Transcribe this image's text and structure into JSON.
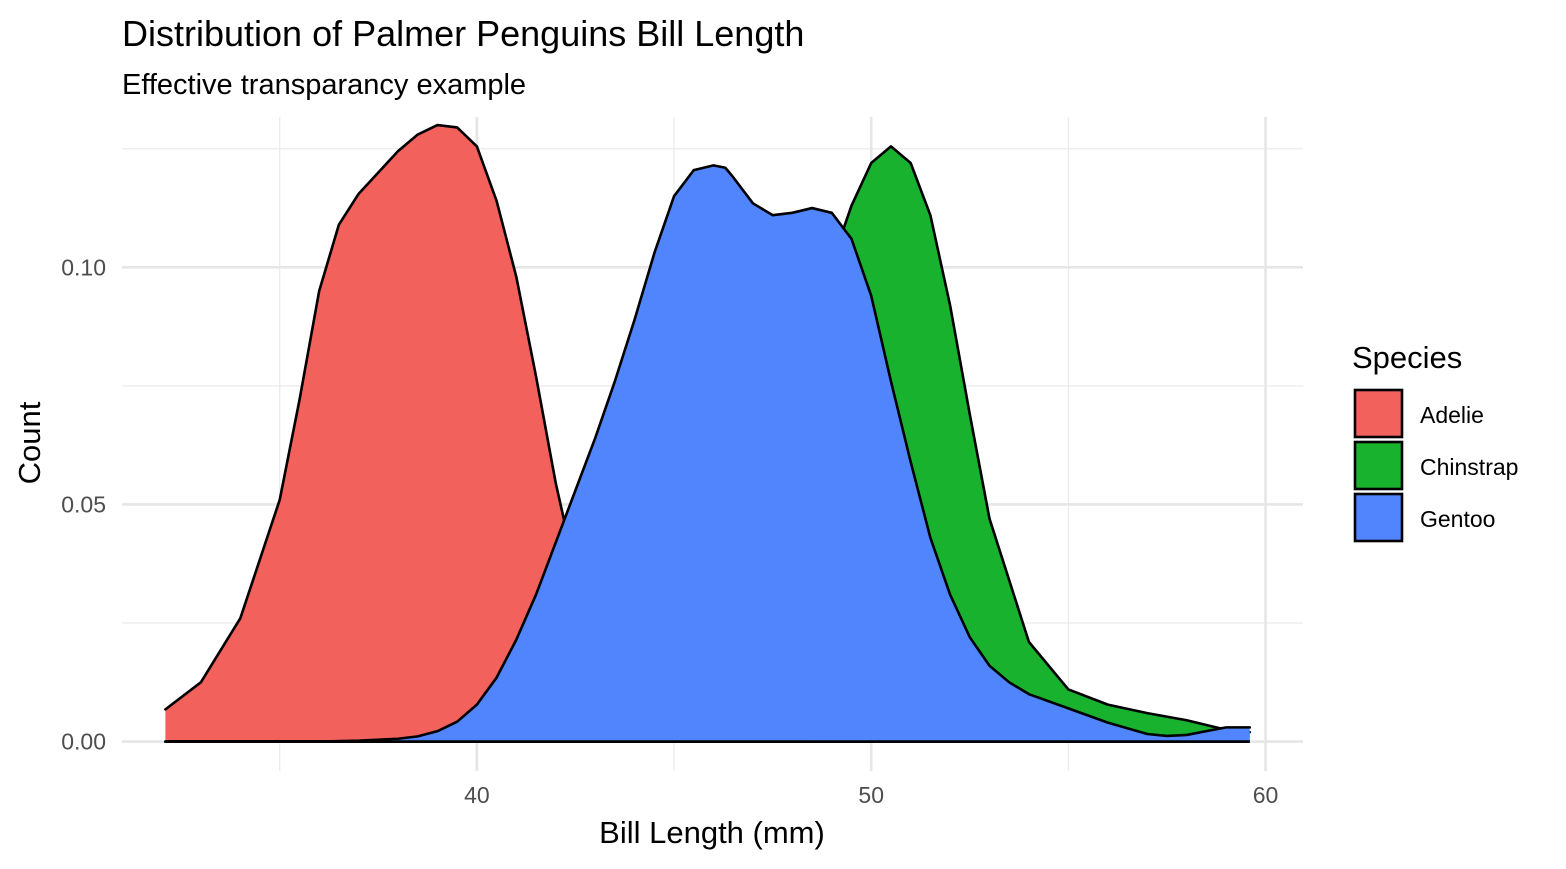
{
  "chart_data": {
    "type": "area",
    "title": "Distribution of Palmer Penguins Bill Length",
    "subtitle": "Effective transparancy example",
    "xlabel": "Bill Length (mm)",
    "ylabel": "Count",
    "xlim": [
      31.0,
      60.95
    ],
    "ylim": [
      -0.0062,
      0.1317
    ],
    "x_ticks": [
      40,
      50,
      60
    ],
    "x_tick_labels": [
      "40",
      "50",
      "60"
    ],
    "x_minor": [
      35,
      45,
      55
    ],
    "y_ticks": [
      0.0,
      0.05,
      0.1
    ],
    "y_tick_labels": [
      "0.00",
      "0.05",
      "0.10"
    ],
    "y_minor": [
      0.025,
      0.075,
      0.125
    ],
    "grid": true,
    "legend": {
      "title": "Species",
      "position": "right"
    },
    "series": [
      {
        "name": "Adelie",
        "color": "#F2615C",
        "x": [
          32.1,
          33.0,
          34.0,
          35.0,
          35.5,
          36.0,
          36.5,
          37.0,
          37.5,
          38.0,
          38.5,
          39.0,
          39.5,
          40.0,
          40.5,
          41.0,
          41.5,
          42.0,
          42.5,
          43.0,
          43.5,
          44.0,
          44.5,
          45.0,
          45.5,
          46.0,
          47.0,
          48.0,
          49.0,
          50.0
        ],
        "values": [
          0.0068,
          0.0125,
          0.026,
          0.051,
          0.072,
          0.095,
          0.109,
          0.1155,
          0.12,
          0.1245,
          0.128,
          0.13,
          0.1295,
          0.1255,
          0.114,
          0.098,
          0.077,
          0.0545,
          0.036,
          0.0225,
          0.014,
          0.0085,
          0.005,
          0.0029,
          0.0016,
          0.0009,
          0.0003,
          0.0001,
          0.0,
          0.0
        ]
      },
      {
        "name": "Chinstrap",
        "color": "#19B22F",
        "x": [
          32.1,
          36.0,
          38.0,
          39.0,
          40.0,
          40.5,
          41.0,
          42.0,
          43.0,
          44.0,
          45.0,
          46.0,
          47.0,
          48.0,
          48.5,
          49.0,
          49.5,
          50.0,
          50.5,
          51.0,
          51.5,
          52.0,
          52.5,
          53.0,
          54.0,
          55.0,
          56.0,
          57.0,
          58.0,
          59.0,
          59.6
        ],
        "values": [
          0.0,
          0.0,
          0.0,
          0.0001,
          0.0005,
          0.0009,
          0.0019,
          0.0055,
          0.0135,
          0.025,
          0.039,
          0.053,
          0.067,
          0.082,
          0.091,
          0.101,
          0.113,
          0.122,
          0.1255,
          0.122,
          0.111,
          0.092,
          0.069,
          0.047,
          0.021,
          0.011,
          0.0078,
          0.006,
          0.0045,
          0.0025,
          0.002
        ]
      },
      {
        "name": "Gentoo",
        "color": "#5185FE",
        "x": [
          32.1,
          36.0,
          37.0,
          38.0,
          38.5,
          39.0,
          39.5,
          40.0,
          40.5,
          41.0,
          41.5,
          42.0,
          42.5,
          43.0,
          43.5,
          44.0,
          44.5,
          45.0,
          45.5,
          46.0,
          46.3,
          46.5,
          47.0,
          47.5,
          48.0,
          48.5,
          49.0,
          49.5,
          50.0,
          50.5,
          51.0,
          51.5,
          52.0,
          52.5,
          53.0,
          53.5,
          54.0,
          55.0,
          56.0,
          57.0,
          57.5,
          58.0,
          58.5,
          59.0,
          59.6
        ],
        "values": [
          0.0,
          0.0,
          0.0002,
          0.0006,
          0.0011,
          0.0022,
          0.0042,
          0.0078,
          0.0135,
          0.0215,
          0.031,
          0.042,
          0.053,
          0.064,
          0.076,
          0.089,
          0.103,
          0.115,
          0.1205,
          0.1215,
          0.121,
          0.119,
          0.1135,
          0.111,
          0.1115,
          0.1125,
          0.1115,
          0.106,
          0.094,
          0.076,
          0.059,
          0.043,
          0.031,
          0.022,
          0.016,
          0.0125,
          0.01,
          0.007,
          0.004,
          0.0016,
          0.0012,
          0.0014,
          0.0022,
          0.003,
          0.003
        ]
      }
    ]
  }
}
